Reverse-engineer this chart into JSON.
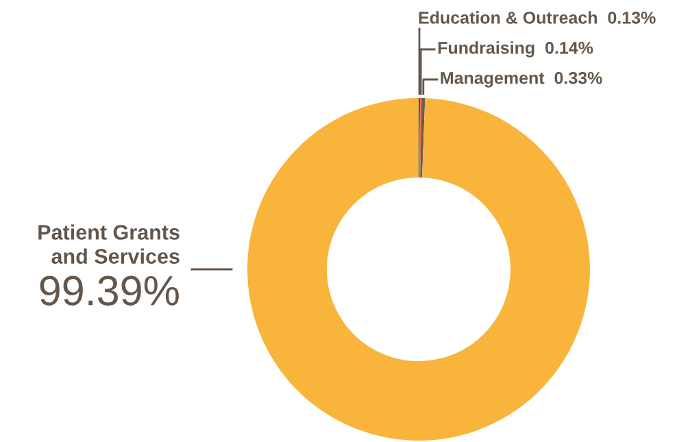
{
  "chart_data": {
    "type": "donut",
    "categories": [
      "Education & Outreach",
      "Fundraising",
      "Management",
      "Patient Grants\nand Services"
    ],
    "values": [
      0.13,
      0.14,
      0.33,
      99.39
    ],
    "value_labels": [
      "0.13%",
      "0.14%",
      "0.33%",
      "99.39%"
    ],
    "colors": [
      "#0f5e93",
      "#ee6f55",
      "#6b5d50",
      "#f9b43c"
    ],
    "legend": false
  }
}
